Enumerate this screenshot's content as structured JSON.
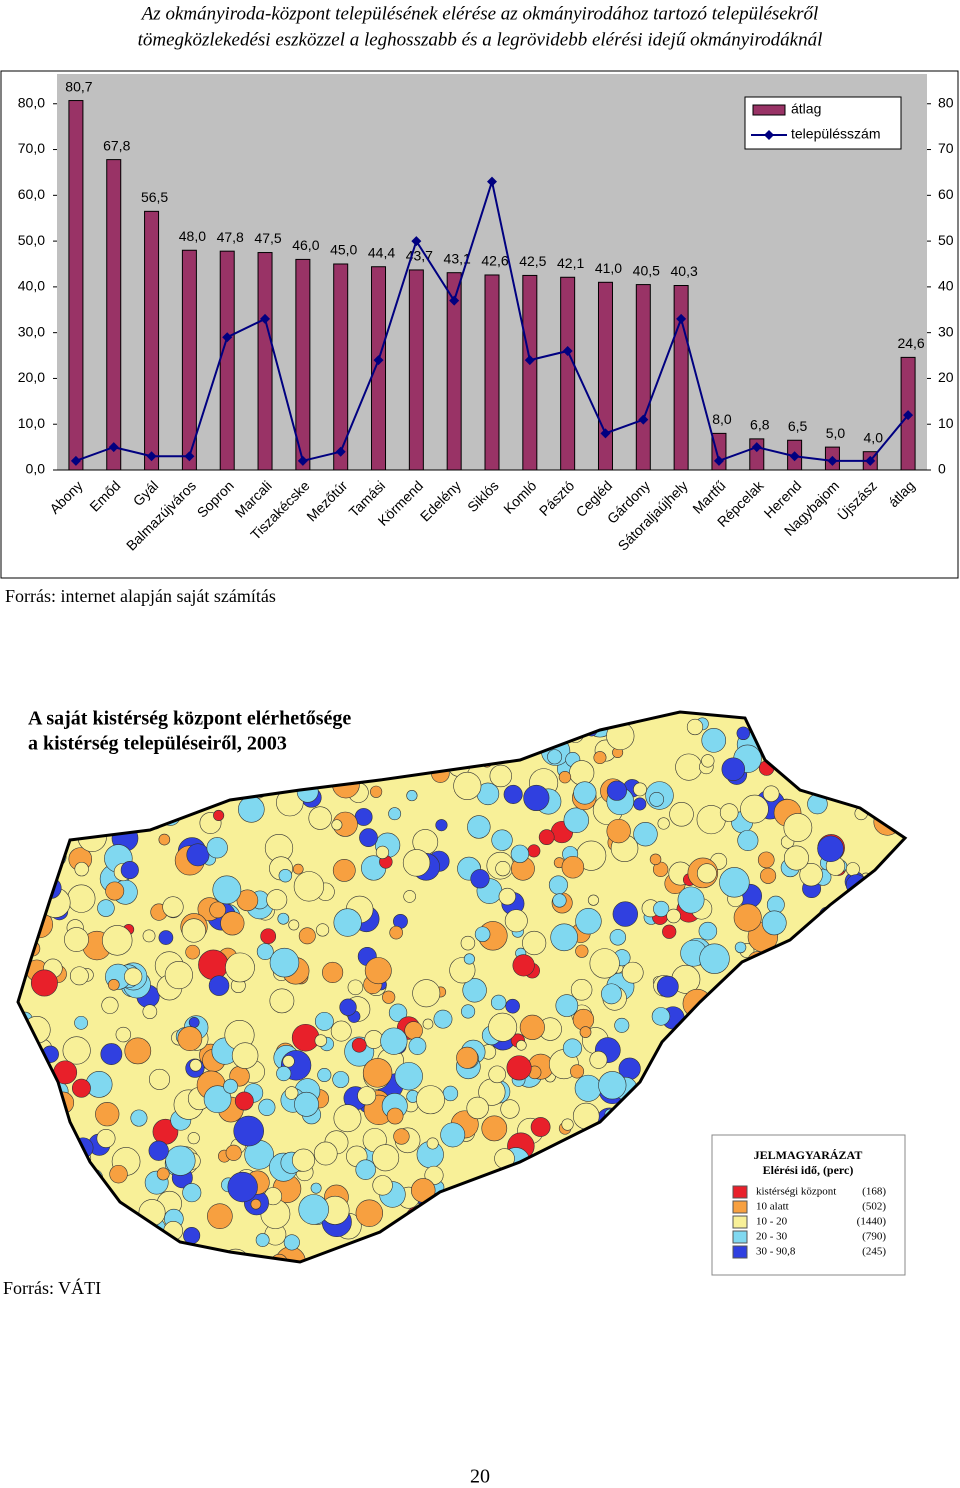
{
  "header": {
    "title_lines": [
      "Az okmányiroda-központ településének elérése az okmányirodához tartozó településekről",
      "tömegközlekedési eszközzel a leghosszabb és a legrövidebb elérési idejű okmányirodáknál"
    ]
  },
  "chart_data": {
    "type": "bar",
    "categories": [
      "Abony",
      "Emőd",
      "Gyál",
      "Balmazújváros",
      "Sopron",
      "Marcali",
      "Tiszakécske",
      "Mezőtúr",
      "Tamási",
      "Körmend",
      "Edelény",
      "Siklós",
      "Komló",
      "Pásztó",
      "Cegléd",
      "Gárdony",
      "Sátoraljaújhely",
      "Martfű",
      "Répcelak",
      "Herend",
      "Nagybajom",
      "Újszász",
      "átlag"
    ],
    "series": [
      {
        "name": "átlag",
        "type": "bar",
        "color": "#993366",
        "values": [
          80.7,
          67.8,
          56.5,
          48.0,
          47.8,
          47.5,
          46.0,
          45.0,
          44.4,
          43.7,
          43.1,
          42.6,
          42.5,
          42.1,
          41.0,
          40.5,
          40.3,
          8.0,
          6.8,
          6.5,
          5.0,
          4.0,
          24.6
        ],
        "value_labels": [
          "80,7",
          "67,8",
          "56,5",
          "48,0",
          "47,8",
          "47,5",
          "46,0",
          "45,0",
          "44,4",
          "43,7",
          "43,1",
          "42,6",
          "42,5",
          "42,1",
          "41,0",
          "40,5",
          "40,3",
          "8,0",
          "6,8",
          "6,5",
          "5,0",
          "4,0",
          "24,6"
        ]
      },
      {
        "name": "településszám",
        "type": "line",
        "axis": "y2",
        "color": "#000080",
        "values": [
          2,
          5,
          3,
          3,
          29,
          33,
          2,
          4,
          24,
          50,
          37,
          63,
          24,
          26,
          8,
          11,
          33,
          2,
          5,
          3,
          2,
          2,
          12
        ]
      }
    ],
    "ylim": [
      0,
      86.5
    ],
    "yticks": [
      {
        "value": 0,
        "label": "0,0"
      },
      {
        "value": 10,
        "label": "10,0"
      },
      {
        "value": 20,
        "label": "20,0"
      },
      {
        "value": 30,
        "label": "30,0"
      },
      {
        "value": 40,
        "label": "40,0"
      },
      {
        "value": 50,
        "label": "50,0"
      },
      {
        "value": 60,
        "label": "60,0"
      },
      {
        "value": 70,
        "label": "70,0"
      },
      {
        "value": 80,
        "label": "80,0"
      }
    ],
    "y2lim": [
      0,
      86.5
    ],
    "y2ticks": [
      0,
      10,
      20,
      30,
      40,
      50,
      60,
      70,
      80
    ],
    "legend": "upper right",
    "grid": false
  },
  "source1": "Forrás: internet alapján saját számítás",
  "map": {
    "title_lines": [
      "A saját kistérség központ elérhetősége",
      "a kistérség településeiről, 2003"
    ],
    "legend": {
      "title": "JELMAGYARÁZAT",
      "subtitle": "Elérési idő, (perc)",
      "items": [
        {
          "label": "kistérségi központ",
          "count": "(168)",
          "color": "#e8202a"
        },
        {
          "label": "10 alatt",
          "count": "(502)",
          "color": "#f7a040"
        },
        {
          "label": "10 - 20",
          "count": "(1440)",
          "color": "#f8f098"
        },
        {
          "label": "20 - 30",
          "count": "(790)",
          "color": "#80d8f0"
        },
        {
          "label": "30 - 90,8",
          "count": "(245)",
          "color": "#3040e0"
        }
      ]
    }
  },
  "source2": "Forrás: VÁTI",
  "page_number": "20"
}
